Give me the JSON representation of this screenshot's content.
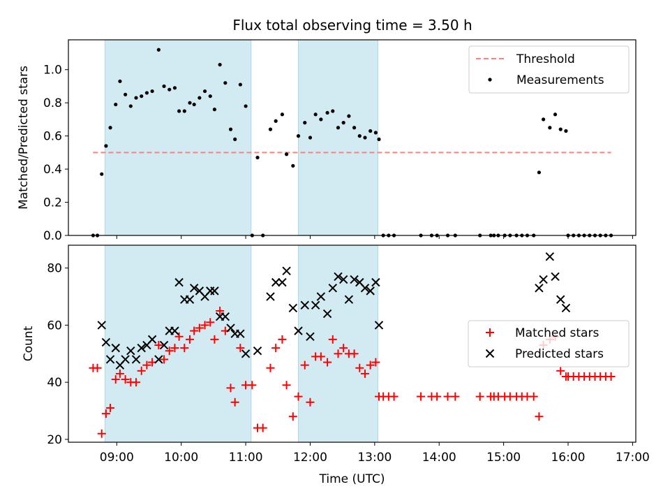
{
  "figure_title": "Flux total observing time = 3.50 h",
  "colors": {
    "shade": "#add8e6",
    "threshold": "#ff7f7f",
    "measurement": "#000000",
    "matched": "#ff0000",
    "predicted": "#000000"
  },
  "shaded_intervals": [
    [
      "08:49",
      "11:05"
    ],
    [
      "11:49",
      "13:03"
    ]
  ],
  "x_ticks": [
    "09:00",
    "10:00",
    "11:00",
    "12:00",
    "13:00",
    "14:00",
    "15:00",
    "16:00",
    "17:00"
  ],
  "x_range": [
    "08:15",
    "17:03"
  ],
  "xlabel": "Time (UTC)",
  "chart_data": [
    {
      "type": "scatter",
      "panel": "top",
      "ylabel": "Matched/Predicted stars",
      "ylim": [
        0,
        1.18
      ],
      "y_ticks": [
        "0.0",
        "0.2",
        "0.4",
        "0.6",
        "0.8",
        "1.0"
      ],
      "legend_position": "top-right",
      "threshold": {
        "name": "Threshold",
        "value": 0.5,
        "x_start": "08:38",
        "x_end": "16:40",
        "style": "dashed"
      },
      "series": [
        {
          "name": "Measurements",
          "marker": "dot",
          "points": [
            [
              "08:38",
              0.0
            ],
            [
              "08:42",
              0.0
            ],
            [
              "08:46",
              0.37
            ],
            [
              "08:50",
              0.54
            ],
            [
              "08:54",
              0.65
            ],
            [
              "08:59",
              0.79
            ],
            [
              "09:03",
              0.93
            ],
            [
              "09:08",
              0.85
            ],
            [
              "09:13",
              0.78
            ],
            [
              "09:18",
              0.83
            ],
            [
              "09:23",
              0.84
            ],
            [
              "09:28",
              0.86
            ],
            [
              "09:33",
              0.87
            ],
            [
              "09:39",
              1.12
            ],
            [
              "09:44",
              0.9
            ],
            [
              "09:49",
              0.88
            ],
            [
              "09:54",
              0.89
            ],
            [
              "09:58",
              0.75
            ],
            [
              "10:03",
              0.75
            ],
            [
              "10:08",
              0.8
            ],
            [
              "10:12",
              0.79
            ],
            [
              "10:17",
              0.83
            ],
            [
              "10:22",
              0.87
            ],
            [
              "10:27",
              0.84
            ],
            [
              "10:31",
              0.76
            ],
            [
              "10:36",
              1.03
            ],
            [
              "10:41",
              0.92
            ],
            [
              "10:46",
              0.64
            ],
            [
              "10:50",
              0.58
            ],
            [
              "10:55",
              0.91
            ],
            [
              "11:00",
              0.78
            ],
            [
              "11:06",
              0.0
            ],
            [
              "11:11",
              0.47
            ],
            [
              "11:16",
              0.0
            ],
            [
              "11:23",
              0.64
            ],
            [
              "11:28",
              0.69
            ],
            [
              "11:34",
              0.73
            ],
            [
              "11:38",
              0.49
            ],
            [
              "11:44",
              0.42
            ],
            [
              "11:49",
              0.6
            ],
            [
              "11:55",
              0.68
            ],
            [
              "12:00",
              0.59
            ],
            [
              "12:05",
              0.73
            ],
            [
              "12:10",
              0.7
            ],
            [
              "12:16",
              0.74
            ],
            [
              "12:21",
              0.75
            ],
            [
              "12:26",
              0.65
            ],
            [
              "12:31",
              0.68
            ],
            [
              "12:36",
              0.72
            ],
            [
              "12:41",
              0.65
            ],
            [
              "12:46",
              0.6
            ],
            [
              "12:51",
              0.59
            ],
            [
              "12:56",
              0.63
            ],
            [
              "13:01",
              0.62
            ],
            [
              "13:04",
              0.58
            ],
            [
              "13:08",
              0.0
            ],
            [
              "13:13",
              0.0
            ],
            [
              "13:18",
              0.0
            ],
            [
              "13:43",
              0.0
            ],
            [
              "13:53",
              0.0
            ],
            [
              "13:58",
              0.0
            ],
            [
              "14:08",
              0.0
            ],
            [
              "14:15",
              0.0
            ],
            [
              "14:38",
              0.0
            ],
            [
              "14:48",
              0.0
            ],
            [
              "14:51",
              0.0
            ],
            [
              "14:55",
              0.0
            ],
            [
              "15:01",
              0.0
            ],
            [
              "15:06",
              0.0
            ],
            [
              "15:12",
              0.0
            ],
            [
              "15:17",
              0.0
            ],
            [
              "15:22",
              0.0
            ],
            [
              "15:28",
              0.0
            ],
            [
              "15:33",
              0.38
            ],
            [
              "15:37",
              0.7
            ],
            [
              "15:43",
              0.65
            ],
            [
              "15:48",
              0.73
            ],
            [
              "15:53",
              0.64
            ],
            [
              "15:58",
              0.63
            ],
            [
              "16:00",
              0.0
            ],
            [
              "16:05",
              0.0
            ],
            [
              "16:10",
              0.0
            ],
            [
              "16:15",
              0.0
            ],
            [
              "16:20",
              0.0
            ],
            [
              "16:25",
              0.0
            ],
            [
              "16:30",
              0.0
            ],
            [
              "16:35",
              0.0
            ],
            [
              "16:40",
              0.0
            ]
          ]
        }
      ]
    },
    {
      "type": "scatter",
      "panel": "bottom",
      "ylabel": "Count",
      "ylim": [
        19,
        88
      ],
      "y_ticks": [
        "20",
        "40",
        "60",
        "80"
      ],
      "legend_position": "center-right",
      "series": [
        {
          "name": "Matched stars",
          "marker": "plus",
          "points": [
            [
              "08:38",
              45
            ],
            [
              "08:42",
              45
            ],
            [
              "08:46",
              22
            ],
            [
              "08:50",
              29
            ],
            [
              "08:54",
              31
            ],
            [
              "08:59",
              41
            ],
            [
              "09:03",
              43
            ],
            [
              "09:08",
              41
            ],
            [
              "09:13",
              40
            ],
            [
              "09:18",
              40
            ],
            [
              "09:23",
              44
            ],
            [
              "09:28",
              46
            ],
            [
              "09:33",
              47
            ],
            [
              "09:39",
              53
            ],
            [
              "09:44",
              48
            ],
            [
              "09:49",
              51
            ],
            [
              "09:54",
              52
            ],
            [
              "09:58",
              56
            ],
            [
              "10:03",
              52
            ],
            [
              "10:08",
              55
            ],
            [
              "10:12",
              58
            ],
            [
              "10:17",
              59
            ],
            [
              "10:22",
              60
            ],
            [
              "10:27",
              61
            ],
            [
              "10:31",
              55
            ],
            [
              "10:36",
              65
            ],
            [
              "10:41",
              58
            ],
            [
              "10:46",
              38
            ],
            [
              "10:50",
              33
            ],
            [
              "10:55",
              52
            ],
            [
              "11:00",
              39
            ],
            [
              "11:06",
              39
            ],
            [
              "11:11",
              24
            ],
            [
              "11:16",
              24
            ],
            [
              "11:23",
              45
            ],
            [
              "11:28",
              52
            ],
            [
              "11:34",
              55
            ],
            [
              "11:38",
              39
            ],
            [
              "11:44",
              28
            ],
            [
              "11:49",
              35
            ],
            [
              "11:55",
              46
            ],
            [
              "12:00",
              33
            ],
            [
              "12:05",
              49
            ],
            [
              "12:10",
              49
            ],
            [
              "12:16",
              47
            ],
            [
              "12:21",
              55
            ],
            [
              "12:26",
              50
            ],
            [
              "12:31",
              52
            ],
            [
              "12:36",
              50
            ],
            [
              "12:41",
              50
            ],
            [
              "12:46",
              45
            ],
            [
              "12:51",
              43
            ],
            [
              "12:56",
              46
            ],
            [
              "13:01",
              47
            ],
            [
              "13:04",
              35
            ],
            [
              "13:08",
              35
            ],
            [
              "13:13",
              35
            ],
            [
              "13:18",
              35
            ],
            [
              "13:43",
              35
            ],
            [
              "13:53",
              35
            ],
            [
              "13:58",
              35
            ],
            [
              "14:08",
              35
            ],
            [
              "14:15",
              35
            ],
            [
              "14:38",
              35
            ],
            [
              "14:48",
              35
            ],
            [
              "14:51",
              35
            ],
            [
              "14:55",
              35
            ],
            [
              "15:01",
              35
            ],
            [
              "15:06",
              35
            ],
            [
              "15:12",
              35
            ],
            [
              "15:17",
              35
            ],
            [
              "15:22",
              35
            ],
            [
              "15:28",
              35
            ],
            [
              "15:33",
              28
            ],
            [
              "15:37",
              53
            ],
            [
              "15:43",
              55
            ],
            [
              "15:48",
              56
            ],
            [
              "15:53",
              44
            ],
            [
              "15:58",
              42
            ],
            [
              "16:00",
              42
            ],
            [
              "16:05",
              42
            ],
            [
              "16:10",
              42
            ],
            [
              "16:15",
              42
            ],
            [
              "16:20",
              42
            ],
            [
              "16:25",
              42
            ],
            [
              "16:30",
              42
            ],
            [
              "16:35",
              42
            ],
            [
              "16:40",
              42
            ]
          ]
        },
        {
          "name": "Predicted stars",
          "marker": "x",
          "points": [
            [
              "08:46",
              60
            ],
            [
              "08:50",
              54
            ],
            [
              "08:54",
              48
            ],
            [
              "08:59",
              52
            ],
            [
              "09:03",
              46
            ],
            [
              "09:08",
              48
            ],
            [
              "09:13",
              51
            ],
            [
              "09:18",
              48
            ],
            [
              "09:23",
              52
            ],
            [
              "09:28",
              53
            ],
            [
              "09:33",
              55
            ],
            [
              "09:39",
              48
            ],
            [
              "09:44",
              53
            ],
            [
              "09:49",
              58
            ],
            [
              "09:54",
              58
            ],
            [
              "09:58",
              75
            ],
            [
              "10:03",
              69
            ],
            [
              "10:08",
              69
            ],
            [
              "10:12",
              73
            ],
            [
              "10:17",
              72
            ],
            [
              "10:22",
              70
            ],
            [
              "10:27",
              72
            ],
            [
              "10:31",
              72
            ],
            [
              "10:36",
              63
            ],
            [
              "10:41",
              63
            ],
            [
              "10:46",
              59
            ],
            [
              "10:50",
              57
            ],
            [
              "10:55",
              57
            ],
            [
              "11:00",
              50
            ],
            [
              "11:11",
              51
            ],
            [
              "11:23",
              70
            ],
            [
              "11:28",
              75
            ],
            [
              "11:34",
              75
            ],
            [
              "11:38",
              79
            ],
            [
              "11:44",
              66
            ],
            [
              "11:49",
              58
            ],
            [
              "11:55",
              67
            ],
            [
              "12:00",
              56
            ],
            [
              "12:05",
              67
            ],
            [
              "12:10",
              70
            ],
            [
              "12:16",
              64
            ],
            [
              "12:21",
              73
            ],
            [
              "12:26",
              77
            ],
            [
              "12:31",
              76
            ],
            [
              "12:36",
              69
            ],
            [
              "12:41",
              76
            ],
            [
              "12:46",
              75
            ],
            [
              "12:51",
              73
            ],
            [
              "12:56",
              72
            ],
            [
              "13:01",
              75
            ],
            [
              "13:04",
              60
            ],
            [
              "15:33",
              73
            ],
            [
              "15:37",
              76
            ],
            [
              "15:43",
              84
            ],
            [
              "15:48",
              77
            ],
            [
              "15:53",
              69
            ],
            [
              "15:58",
              66
            ]
          ]
        }
      ]
    }
  ]
}
